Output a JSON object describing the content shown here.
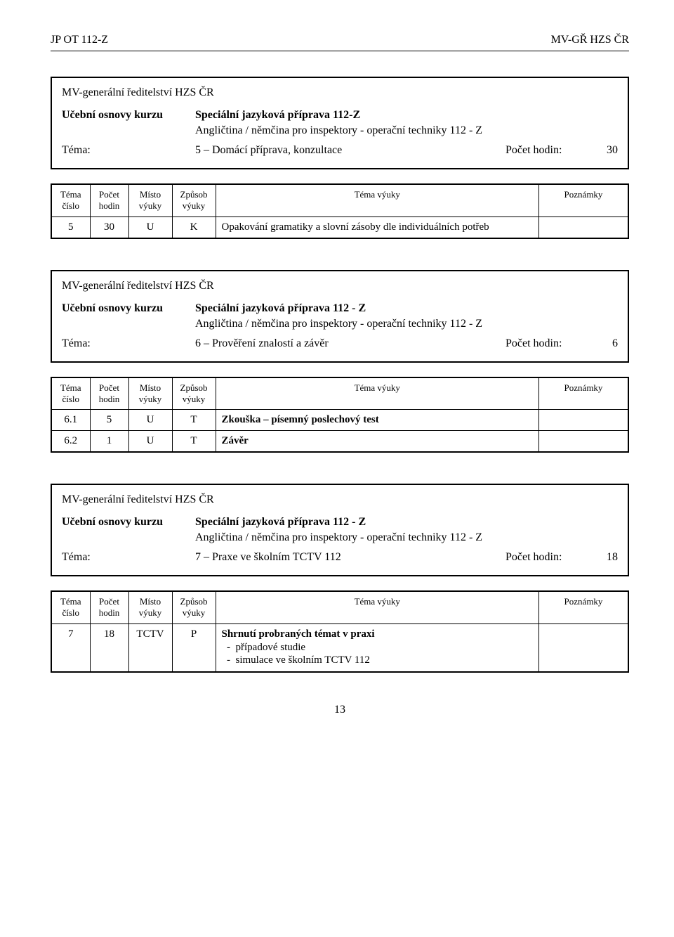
{
  "header": {
    "left": "JP OT 112-Z",
    "right": "MV-GŘ HZS ČR"
  },
  "columns": {
    "c1": "Téma\nčíslo",
    "c2": "Počet\nhodin",
    "c3": "Místo\nvýuky",
    "c4": "Způsob\nvýuky",
    "c5": "Téma výuky",
    "c6": "Poznámky"
  },
  "blocks": [
    {
      "org": "MV-generální ředitelství HZS ČR",
      "osnova_label": "Učební osnovy kurzu",
      "osnova_value": "Speciální jazyková příprava 112-Z",
      "subline": "Angličtina / němčina pro inspektory - operační techniky 112 - Z",
      "tema_label": "Téma:",
      "tema_value": "5 – Domácí příprava, konzultace",
      "pocet_label": "Počet hodin:",
      "pocet_value": "30",
      "rows": [
        {
          "c1": "5",
          "c2": "30",
          "c3": "U",
          "c4": "K",
          "topic": "Opakování gramatiky a slovní zásoby dle individuálních potřeb",
          "notes": ""
        }
      ]
    },
    {
      "org": "MV-generální ředitelství HZS ČR",
      "osnova_label": "Učební osnovy kurzu",
      "osnova_value": "Speciální jazyková příprava 112 - Z",
      "subline": "Angličtina / němčina pro inspektory - operační techniky 112 - Z",
      "tema_label": "Téma:",
      "tema_value": "6 – Prověření znalostí a závěr",
      "pocet_label": "Počet hodin:",
      "pocet_value": "6",
      "rows": [
        {
          "c1": "6.1",
          "c2": "5",
          "c3": "U",
          "c4": "T",
          "topic": "Zkouška – písemný poslechový test",
          "topic_bold": true,
          "notes": ""
        },
        {
          "c1": "6.2",
          "c2": "1",
          "c3": "U",
          "c4": "T",
          "topic": "Závěr",
          "topic_bold": true,
          "notes": ""
        }
      ]
    },
    {
      "org": "MV-generální ředitelství HZS ČR",
      "osnova_label": "Učební osnovy kurzu",
      "osnova_value": "Speciální jazyková příprava 112 - Z",
      "subline": "Angličtina / němčina pro inspektory - operační techniky 112 - Z",
      "tema_label": "Téma:",
      "tema_value": "7 – Praxe ve školním TCTV 112",
      "pocet_label": "Počet hodin:",
      "pocet_value": "18",
      "rows": [
        {
          "c1": "7",
          "c2": "18",
          "c3": "TCTV",
          "c4": "P",
          "topic": "Shrnutí probraných témat v praxi",
          "topic_bold": true,
          "sublist": [
            "případové studie",
            "simulace ve školním TCTV 112"
          ],
          "notes": ""
        }
      ]
    }
  ],
  "page_number": "13"
}
